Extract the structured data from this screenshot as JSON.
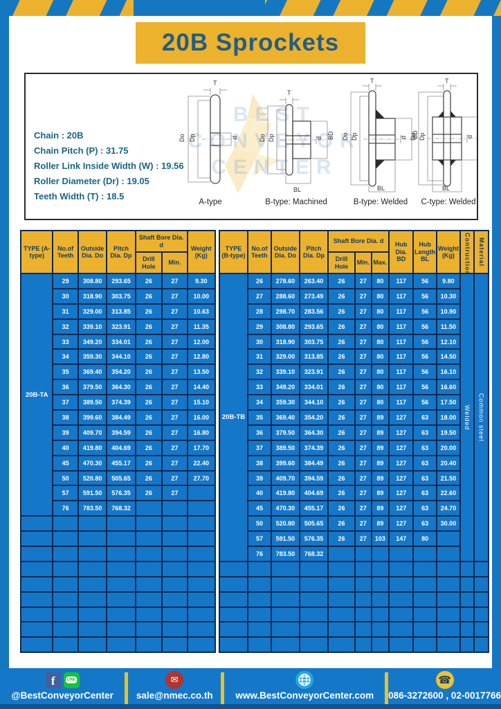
{
  "title": "20B Sprockets",
  "specs": {
    "lines": [
      "Chain  : 20B",
      "Chain Pitch (P)  :  31.75",
      "Roller Link Inside Width (W)  :  19.56",
      "Roller Diameter (Dr)  : 19.05",
      "Teeth Width (T)  :  18.5"
    ]
  },
  "diagram": {
    "types": [
      "A-type",
      "B-type: Machined",
      "B-type: Welded",
      "C-type: Welded"
    ],
    "dims": {
      "T": "T",
      "Do": "Do",
      "Dp": "Dp",
      "d": "d",
      "BD": "BD",
      "BL": "BL"
    },
    "watermark_line1": "BEST",
    "watermark_line2": "CONVEYOR",
    "watermark_line3": "CENTER"
  },
  "table_a": {
    "type_label": "20B-TA",
    "headers": {
      "type": "TYPE (A-type)",
      "teeth": "No.of Teeth",
      "outside": "Outside Dia. Do",
      "pitch": "Pitch Dia. Dp",
      "shaft_bore": "Shaft Bore Dia. d",
      "drill": "Drill Hole",
      "min": "Min.",
      "weight": "Weight (Kg)"
    },
    "rows": [
      [
        "29",
        "308.80",
        "293.65",
        "26",
        "27",
        "9.30"
      ],
      [
        "30",
        "318.90",
        "303.75",
        "26",
        "27",
        "10.00"
      ],
      [
        "31",
        "329.00",
        "313.85",
        "26",
        "27",
        "10.63"
      ],
      [
        "32",
        "339.10",
        "323.91",
        "26",
        "27",
        "11.35"
      ],
      [
        "33",
        "349.20",
        "334.01",
        "26",
        "27",
        "12.00"
      ],
      [
        "34",
        "359.30",
        "344.10",
        "26",
        "27",
        "12.80"
      ],
      [
        "35",
        "369.40",
        "354.20",
        "26",
        "27",
        "13.50"
      ],
      [
        "36",
        "379.50",
        "364.30",
        "26",
        "27",
        "14.40"
      ],
      [
        "37",
        "389.50",
        "374.39",
        "26",
        "27",
        "15.10"
      ],
      [
        "38",
        "399.60",
        "384.49",
        "26",
        "27",
        "16.00"
      ],
      [
        "39",
        "409.70",
        "394.59",
        "26",
        "27",
        "16.80"
      ],
      [
        "40",
        "419.80",
        "404.69",
        "26",
        "27",
        "17.70"
      ],
      [
        "45",
        "470.30",
        "455.17",
        "26",
        "27",
        "22.40"
      ],
      [
        "50",
        "520.80",
        "505.65",
        "26",
        "27",
        "27.70"
      ],
      [
        "57",
        "591.50",
        "576.35",
        "26",
        "27",
        ""
      ],
      [
        "76",
        "783.50",
        "768.32",
        "",
        "",
        ""
      ]
    ],
    "empty_rows": 9
  },
  "table_b": {
    "type_label": "20B-TB",
    "construction": "Welded",
    "material": "Common  steel",
    "headers": {
      "type": "TYPE (B-type)",
      "teeth": "No.of Teeth",
      "outside": "Outside Dia. Do",
      "pitch": "Pitch Dia. Dp",
      "shaft_bore": "Shaft Bore Dia. d",
      "drill": "Drill Hole",
      "min": "Min.",
      "max": "Max.",
      "hub_dia": "Hub Dia. BD",
      "hub_len": "Hub Length BL",
      "weight": "Weight (Kg)",
      "construction": "Contruction",
      "material": "Material"
    },
    "rows": [
      [
        "26",
        "278.60",
        "263.40",
        "26",
        "27",
        "80",
        "117",
        "56",
        "9.80"
      ],
      [
        "27",
        "288.60",
        "273.49",
        "26",
        "27",
        "80",
        "117",
        "56",
        "10.30"
      ],
      [
        "28",
        "298.70",
        "283.56",
        "26",
        "27",
        "80",
        "117",
        "56",
        "10.90"
      ],
      [
        "29",
        "308.80",
        "293.65",
        "26",
        "27",
        "80",
        "117",
        "56",
        "11.50"
      ],
      [
        "30",
        "318.90",
        "303.75",
        "26",
        "27",
        "80",
        "117",
        "56",
        "12.10"
      ],
      [
        "31",
        "329.00",
        "313.85",
        "26",
        "27",
        "80",
        "117",
        "56",
        "14.50"
      ],
      [
        "32",
        "339.10",
        "323.91",
        "26",
        "27",
        "80",
        "117",
        "56",
        "16.10"
      ],
      [
        "33",
        "349.20",
        "334.01",
        "26",
        "27",
        "80",
        "117",
        "56",
        "16.60"
      ],
      [
        "34",
        "359.30",
        "344.10",
        "26",
        "27",
        "80",
        "117",
        "56",
        "17.50"
      ],
      [
        "35",
        "369.40",
        "354.20",
        "26",
        "27",
        "89",
        "127",
        "63",
        "18.00"
      ],
      [
        "36",
        "379.50",
        "364.30",
        "26",
        "27",
        "89",
        "127",
        "63",
        "19.50"
      ],
      [
        "37",
        "389.50",
        "374.39",
        "26",
        "27",
        "89",
        "127",
        "63",
        "20.00"
      ],
      [
        "38",
        "399.60",
        "384.49",
        "26",
        "27",
        "89",
        "127",
        "63",
        "20.40"
      ],
      [
        "39",
        "409.70",
        "394.59",
        "26",
        "27",
        "89",
        "127",
        "63",
        "21.50"
      ],
      [
        "40",
        "419.80",
        "404.69",
        "26",
        "27",
        "89",
        "127",
        "63",
        "22.60"
      ],
      [
        "45",
        "470.30",
        "455.17",
        "26",
        "27",
        "89",
        "127",
        "63",
        "24.70"
      ],
      [
        "50",
        "520.80",
        "505.65",
        "26",
        "27",
        "89",
        "127",
        "63",
        "30.00"
      ],
      [
        "57",
        "591.50",
        "576.35",
        "26",
        "27",
        "103",
        "147",
        "80",
        ""
      ],
      [
        "76",
        "783.50",
        "768.32",
        "",
        "",
        "",
        "",
        "",
        ""
      ]
    ],
    "empty_rows": 6
  },
  "footer": {
    "social": "@BestConveyorCenter",
    "line_badge": "LINE",
    "fb_glyph": "f",
    "email": "sale@nmec.co.th",
    "website": "www.BestConveyorCenter.com",
    "phone": "086-3272600 , 02-0017766"
  },
  "colors": {
    "blue": "#1577c8",
    "yellow": "#ecb22e",
    "navy_border": "#0e2950",
    "title_text": "#235e84",
    "spec_text": "#1b6584"
  }
}
